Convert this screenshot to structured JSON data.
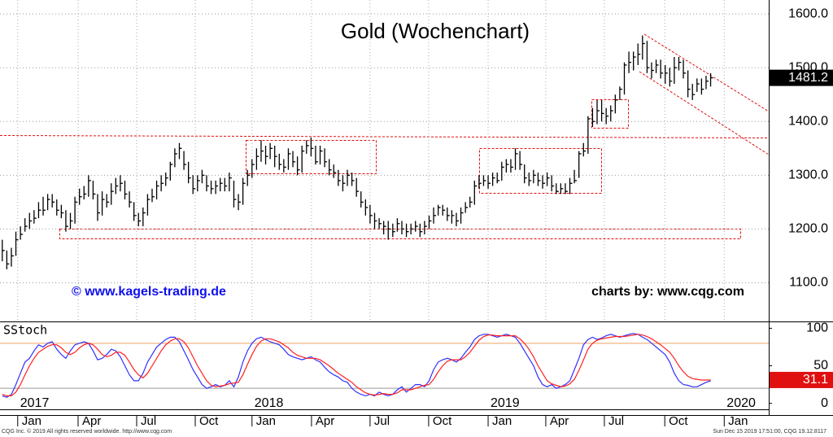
{
  "chart_data": [
    {
      "type": "ohlc",
      "title": "Gold (Wochenchart)",
      "annotations": [
        "© www.kagels-trading.de",
        "charts by: www.cqg.com"
      ],
      "color": "#000000",
      "xlim": [
        -0.5,
        168.8
      ],
      "ylim": [
        1028,
        1626
      ],
      "yticks": [
        {
          "value": 1100,
          "label": "1100.0"
        },
        {
          "value": 1200,
          "label": "1200.0"
        },
        {
          "value": 1300,
          "label": "1300.0"
        },
        {
          "value": 1400,
          "label": "1400.0"
        },
        {
          "value": 1500,
          "label": "1500.0"
        },
        {
          "value": 1600,
          "label": "1600.0"
        }
      ],
      "grid": true,
      "high": [
        1180,
        1160,
        1165,
        1195,
        1205,
        1220,
        1230,
        1235,
        1250,
        1260,
        1265,
        1265,
        1255,
        1245,
        1235,
        1230,
        1260,
        1275,
        1280,
        1300,
        1290,
        1265,
        1270,
        1265,
        1285,
        1295,
        1300,
        1290,
        1270,
        1250,
        1230,
        1240,
        1265,
        1275,
        1290,
        1300,
        1305,
        1325,
        1350,
        1360,
        1345,
        1325,
        1300,
        1300,
        1310,
        1300,
        1290,
        1290,
        1295,
        1295,
        1305,
        1290,
        1265,
        1295,
        1310,
        1330,
        1350,
        1365,
        1355,
        1360,
        1355,
        1340,
        1330,
        1350,
        1345,
        1335,
        1355,
        1365,
        1370,
        1355,
        1355,
        1350,
        1330,
        1320,
        1310,
        1300,
        1310,
        1305,
        1295,
        1270,
        1255,
        1245,
        1230,
        1220,
        1215,
        1215,
        1210,
        1220,
        1215,
        1210,
        1210,
        1215,
        1210,
        1215,
        1225,
        1240,
        1245,
        1245,
        1240,
        1235,
        1230,
        1240,
        1250,
        1260,
        1290,
        1300,
        1300,
        1300,
        1305,
        1305,
        1325,
        1330,
        1330,
        1350,
        1345,
        1320,
        1305,
        1310,
        1305,
        1300,
        1305,
        1300,
        1285,
        1285,
        1285,
        1295,
        1310,
        1345,
        1360,
        1410,
        1425,
        1440,
        1440,
        1425,
        1430,
        1450,
        1465,
        1510,
        1530,
        1530,
        1545,
        1560,
        1550,
        1510,
        1515,
        1515,
        1505,
        1500,
        1520,
        1520,
        1515,
        1495,
        1470,
        1480,
        1480,
        1485,
        1490
      ],
      "low": [
        1140,
        1125,
        1130,
        1150,
        1180,
        1195,
        1200,
        1210,
        1220,
        1225,
        1235,
        1240,
        1225,
        1220,
        1195,
        1200,
        1210,
        1245,
        1255,
        1260,
        1255,
        1215,
        1225,
        1240,
        1245,
        1265,
        1270,
        1255,
        1240,
        1215,
        1205,
        1205,
        1225,
        1250,
        1255,
        1270,
        1280,
        1290,
        1315,
        1330,
        1310,
        1285,
        1265,
        1270,
        1285,
        1270,
        1265,
        1265,
        1270,
        1270,
        1270,
        1240,
        1235,
        1245,
        1280,
        1295,
        1310,
        1325,
        1320,
        1330,
        1315,
        1310,
        1305,
        1310,
        1315,
        1300,
        1305,
        1340,
        1335,
        1320,
        1320,
        1315,
        1300,
        1295,
        1280,
        1270,
        1280,
        1280,
        1260,
        1240,
        1225,
        1210,
        1200,
        1200,
        1190,
        1180,
        1185,
        1195,
        1190,
        1185,
        1190,
        1195,
        1185,
        1190,
        1200,
        1210,
        1225,
        1225,
        1215,
        1210,
        1205,
        1210,
        1230,
        1240,
        1245,
        1275,
        1280,
        1275,
        1280,
        1285,
        1290,
        1305,
        1305,
        1310,
        1310,
        1285,
        1280,
        1285,
        1280,
        1275,
        1280,
        1270,
        1265,
        1265,
        1265,
        1265,
        1285,
        1295,
        1335,
        1340,
        1390,
        1395,
        1400,
        1395,
        1400,
        1415,
        1440,
        1450,
        1490,
        1495,
        1505,
        1515,
        1490,
        1480,
        1490,
        1480,
        1470,
        1465,
        1470,
        1495,
        1480,
        1445,
        1440,
        1455,
        1450,
        1460,
        1465
      ],
      "close": [
        1160,
        1135,
        1150,
        1180,
        1190,
        1205,
        1215,
        1220,
        1235,
        1235,
        1255,
        1250,
        1235,
        1230,
        1205,
        1215,
        1250,
        1260,
        1265,
        1290,
        1265,
        1230,
        1255,
        1250,
        1270,
        1280,
        1285,
        1265,
        1250,
        1225,
        1215,
        1230,
        1255,
        1260,
        1280,
        1285,
        1295,
        1320,
        1340,
        1350,
        1320,
        1295,
        1275,
        1290,
        1300,
        1280,
        1275,
        1280,
        1285,
        1280,
        1295,
        1255,
        1250,
        1285,
        1300,
        1320,
        1335,
        1345,
        1335,
        1350,
        1335,
        1320,
        1315,
        1340,
        1325,
        1310,
        1345,
        1355,
        1350,
        1325,
        1345,
        1325,
        1310,
        1305,
        1290,
        1285,
        1300,
        1290,
        1270,
        1250,
        1240,
        1225,
        1215,
        1210,
        1205,
        1200,
        1195,
        1210,
        1200,
        1195,
        1200,
        1205,
        1195,
        1205,
        1215,
        1225,
        1240,
        1235,
        1225,
        1225,
        1215,
        1230,
        1240,
        1250,
        1280,
        1285,
        1290,
        1285,
        1295,
        1290,
        1315,
        1320,
        1315,
        1340,
        1320,
        1295,
        1290,
        1300,
        1290,
        1285,
        1295,
        1280,
        1270,
        1275,
        1270,
        1285,
        1290,
        1340,
        1345,
        1405,
        1400,
        1420,
        1415,
        1410,
        1420,
        1440,
        1460,
        1505,
        1510,
        1520,
        1525,
        1545,
        1500,
        1495,
        1505,
        1490,
        1490,
        1475,
        1500,
        1510,
        1490,
        1460,
        1450,
        1470,
        1460,
        1475,
        1481.2
      ]
    },
    {
      "type": "line",
      "title": "SStoch",
      "xlim": [
        -0.5,
        168.8
      ],
      "ylim": [
        -8,
        108
      ],
      "yticks": [
        0,
        50,
        100
      ],
      "xticks": [
        {
          "value": 3.4,
          "label": "Jan"
        },
        {
          "value": 16.7,
          "label": "Apr"
        },
        {
          "value": 29.6,
          "label": "Jul"
        },
        {
          "value": 42.5,
          "label": "Oct"
        },
        {
          "value": 55,
          "label": "Jan"
        },
        {
          "value": 68.1,
          "label": "Apr"
        },
        {
          "value": 81,
          "label": "Jul"
        },
        {
          "value": 93.9,
          "label": "Oct"
        },
        {
          "value": 107,
          "label": "Jan"
        },
        {
          "value": 119.7,
          "label": "Apr"
        },
        {
          "value": 132.6,
          "label": "Jul"
        },
        {
          "value": 145.9,
          "label": "Oct"
        },
        {
          "value": 159,
          "label": "Jan"
        }
      ],
      "year_ticks": [
        {
          "value": 3.4,
          "label": "2017"
        },
        {
          "value": 55,
          "label": "2018"
        },
        {
          "value": 107,
          "label": "2019"
        },
        {
          "value": 159,
          "label": "2020"
        }
      ],
      "series": [
        {
          "color": "#3030ff",
          "values": [
            10,
            8,
            12,
            25,
            40,
            55,
            60,
            70,
            78,
            75,
            80,
            82,
            72,
            65,
            60,
            70,
            78,
            80,
            82,
            80,
            70,
            58,
            60,
            65,
            72,
            70,
            62,
            50,
            38,
            30,
            30,
            40,
            55,
            65,
            75,
            80,
            85,
            88,
            88,
            82,
            70,
            58,
            45,
            35,
            25,
            20,
            22,
            25,
            22,
            24,
            30,
            22,
            35,
            55,
            70,
            80,
            86,
            88,
            85,
            82,
            80,
            78,
            72,
            65,
            62,
            60,
            58,
            60,
            62,
            58,
            55,
            48,
            42,
            38,
            35,
            30,
            28,
            20,
            15,
            12,
            10,
            12,
            10,
            15,
            12,
            10,
            12,
            18,
            22,
            15,
            20,
            25,
            25,
            22,
            30,
            45,
            55,
            58,
            60,
            58,
            55,
            60,
            68,
            75,
            85,
            90,
            92,
            92,
            90,
            88,
            90,
            92,
            90,
            88,
            80,
            70,
            60,
            50,
            35,
            25,
            22,
            25,
            20,
            22,
            25,
            30,
            45,
            60,
            78,
            85,
            88,
            85,
            87,
            90,
            92,
            90,
            88,
            90,
            92,
            93,
            92,
            88,
            85,
            80,
            75,
            70,
            65,
            55,
            40,
            30,
            25,
            24,
            22,
            22,
            25,
            28,
            30
          ]
        },
        {
          "color": "#ff2020",
          "values": [
            12,
            10,
            10,
            15,
            25,
            38,
            50,
            60,
            68,
            72,
            76,
            78,
            78,
            74,
            68,
            65,
            68,
            74,
            78,
            80,
            78,
            72,
            65,
            62,
            64,
            68,
            68,
            64,
            55,
            45,
            38,
            34,
            40,
            50,
            60,
            70,
            78,
            83,
            86,
            86,
            82,
            74,
            62,
            50,
            40,
            30,
            24,
            22,
            23,
            24,
            26,
            27,
            28,
            38,
            52,
            65,
            76,
            83,
            86,
            86,
            84,
            82,
            78,
            74,
            68,
            64,
            62,
            60,
            60,
            60,
            58,
            54,
            50,
            45,
            40,
            36,
            32,
            28,
            22,
            18,
            14,
            12,
            11,
            12,
            13,
            12,
            12,
            14,
            18,
            18,
            18,
            20,
            22,
            24,
            25,
            32,
            42,
            50,
            56,
            58,
            58,
            58,
            62,
            68,
            76,
            84,
            89,
            91,
            91,
            90,
            90,
            90,
            90,
            90,
            86,
            80,
            72,
            62,
            50,
            40,
            30,
            26,
            24,
            22,
            23,
            26,
            32,
            44,
            58,
            72,
            80,
            84,
            86,
            87,
            88,
            89,
            89,
            89,
            90,
            91,
            92,
            91,
            89,
            86,
            82,
            78,
            73,
            68,
            60,
            50,
            42,
            36,
            33,
            32,
            31,
            31,
            31.1
          ]
        }
      ]
    }
  ],
  "footer": {
    "left": "CQG Inc. © 2019 All rights reserved worldwide. http://www.cqg.com",
    "right": "Sun Dec 15 2019 17:51:00, CQG 19.12.8117"
  }
}
